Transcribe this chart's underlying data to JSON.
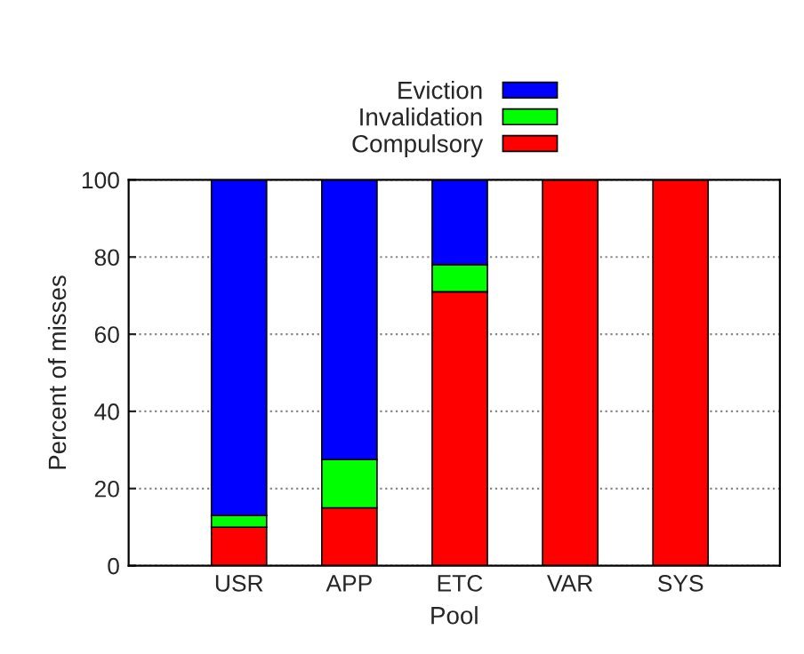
{
  "chart_data": {
    "type": "bar",
    "stacked": true,
    "xlabel": "Pool",
    "ylabel": "Percent of misses",
    "categories": [
      "USR",
      "APP",
      "ETC",
      "VAR",
      "SYS"
    ],
    "series": [
      {
        "name": "Compulsory",
        "color": "#ff0000",
        "values": [
          10,
          15,
          71,
          100,
          100
        ]
      },
      {
        "name": "Invalidation",
        "color": "#00ff00",
        "values": [
          3,
          12.5,
          7,
          0,
          0
        ]
      },
      {
        "name": "Eviction",
        "color": "#0000ff",
        "values": [
          87,
          72.5,
          22,
          0,
          0
        ]
      }
    ],
    "ylim": [
      0,
      100
    ],
    "yticks": [
      0,
      20,
      40,
      60,
      80,
      100
    ],
    "grid": "y",
    "legend": "top"
  }
}
